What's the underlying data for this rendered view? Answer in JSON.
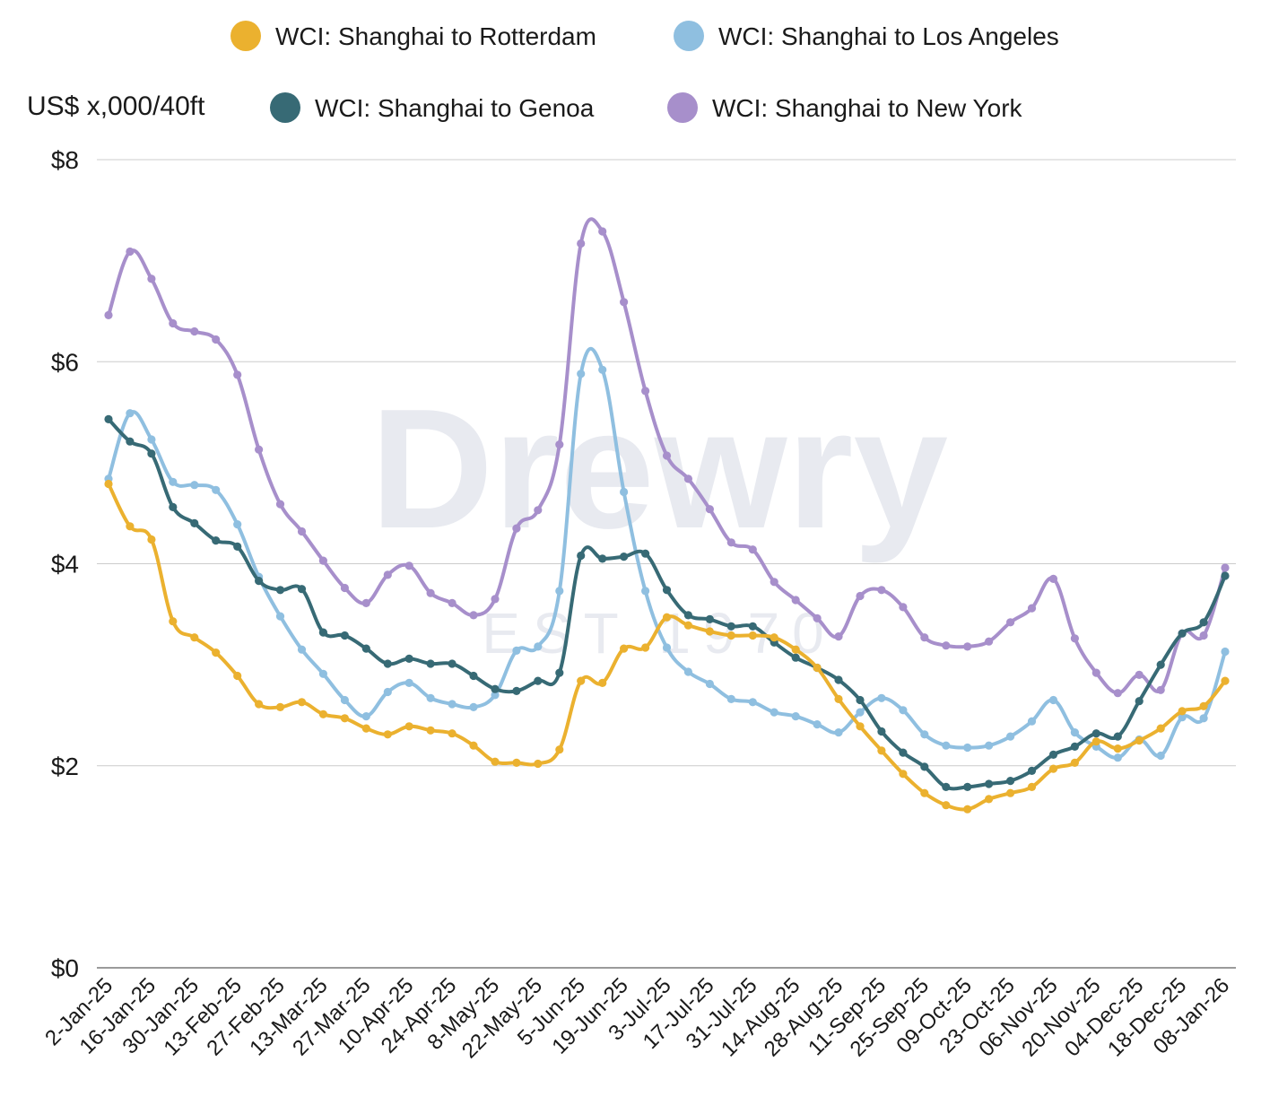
{
  "chart_data": {
    "type": "line",
    "ylabel": "US$ x,000/40ft",
    "ylim": [
      0,
      8
    ],
    "yticks": [
      {
        "value": 0,
        "label": "$0"
      },
      {
        "value": 2,
        "label": "$2"
      },
      {
        "value": 4,
        "label": "$4"
      },
      {
        "value": 6,
        "label": "$6"
      },
      {
        "value": 8,
        "label": "$8"
      }
    ],
    "grid": true,
    "legend": "top",
    "watermark": {
      "brand": "Drewry",
      "est": "EST 1970"
    },
    "x": [
      "2-Jan-25",
      "9-Jan-25",
      "16-Jan-25",
      "23-Jan-25",
      "30-Jan-25",
      "6-Feb-25",
      "13-Feb-25",
      "20-Feb-25",
      "27-Feb-25",
      "6-Mar-25",
      "13-Mar-25",
      "20-Mar-25",
      "27-Mar-25",
      "3-Apr-25",
      "10-Apr-25",
      "17-Apr-25",
      "24-Apr-25",
      "1-May-25",
      "8-May-25",
      "15-May-25",
      "22-May-25",
      "29-May-25",
      "5-Jun-25",
      "12-Jun-25",
      "19-Jun-25",
      "26-Jun-25",
      "3-Jul-25",
      "10-Jul-25",
      "17-Jul-25",
      "24-Jul-25",
      "31-Jul-25",
      "7-Aug-25",
      "14-Aug-25",
      "21-Aug-25",
      "28-Aug-25",
      "4-Sep-25",
      "11-Sep-25",
      "18-Sep-25",
      "25-Sep-25",
      "02-Oct-25",
      "09-Oct-25",
      "16-Oct-25",
      "23-Oct-25",
      "30-Oct-25",
      "06-Nov-25",
      "13-Nov-25",
      "20-Nov-25",
      "27-Nov-25",
      "04-Dec-25",
      "11-Dec-25",
      "18-Dec-25",
      "25-Dec-25",
      "08-Jan-26"
    ],
    "xtick_labels": [
      "2-Jan-25",
      "16-Jan-25",
      "30-Jan-25",
      "13-Feb-25",
      "27-Feb-25",
      "13-Mar-25",
      "27-Mar-25",
      "10-Apr-25",
      "24-Apr-25",
      "8-May-25",
      "22-May-25",
      "5-Jun-25",
      "19-Jun-25",
      "3-Jul-25",
      "17-Jul-25",
      "31-Jul-25",
      "14-Aug-25",
      "28-Aug-25",
      "11-Sep-25",
      "25-Sep-25",
      "09-Oct-25",
      "23-Oct-25",
      "06-Nov-25",
      "20-Nov-25",
      "04-Dec-25",
      "18-Dec-25",
      "08-Jan-26"
    ],
    "xtick_index": [
      0,
      2,
      4,
      6,
      8,
      10,
      12,
      14,
      16,
      18,
      20,
      22,
      24,
      26,
      28,
      30,
      32,
      34,
      36,
      38,
      40,
      42,
      44,
      46,
      48,
      50,
      52
    ],
    "series": [
      {
        "name": "WCI: Shanghai to Rotterdam",
        "color": "#EBB12F",
        "values": [
          4.79,
          4.37,
          4.24,
          3.43,
          3.27,
          3.12,
          2.89,
          2.61,
          2.58,
          2.63,
          2.51,
          2.47,
          2.37,
          2.31,
          2.39,
          2.35,
          2.32,
          2.2,
          2.04,
          2.03,
          2.02,
          2.16,
          2.84,
          2.82,
          3.16,
          3.17,
          3.47,
          3.39,
          3.33,
          3.29,
          3.29,
          3.27,
          3.15,
          2.97,
          2.66,
          2.39,
          2.15,
          1.92,
          1.73,
          1.61,
          1.57,
          1.67,
          1.73,
          1.79,
          1.97,
          2.03,
          2.24,
          2.17,
          2.25,
          2.37,
          2.54,
          2.59,
          2.84
        ]
      },
      {
        "name": "WCI: Shanghai to Los Angeles",
        "color": "#8FBFE0",
        "values": [
          4.84,
          5.49,
          5.23,
          4.81,
          4.78,
          4.73,
          4.39,
          3.87,
          3.48,
          3.15,
          2.91,
          2.65,
          2.49,
          2.73,
          2.82,
          2.67,
          2.61,
          2.58,
          2.7,
          3.14,
          3.18,
          3.73,
          5.88,
          5.92,
          4.71,
          3.73,
          3.17,
          2.93,
          2.81,
          2.66,
          2.63,
          2.53,
          2.49,
          2.41,
          2.33,
          2.53,
          2.67,
          2.55,
          2.31,
          2.2,
          2.18,
          2.2,
          2.29,
          2.44,
          2.65,
          2.33,
          2.19,
          2.08,
          2.26,
          2.1,
          2.48,
          2.47,
          3.13
        ]
      },
      {
        "name": "WCI: Shanghai to Genoa",
        "color": "#376A75",
        "values": [
          5.43,
          5.21,
          5.09,
          4.56,
          4.4,
          4.23,
          4.17,
          3.83,
          3.74,
          3.75,
          3.32,
          3.29,
          3.16,
          3.01,
          3.06,
          3.01,
          3.01,
          2.89,
          2.76,
          2.74,
          2.84,
          2.92,
          4.08,
          4.05,
          4.07,
          4.1,
          3.74,
          3.49,
          3.45,
          3.38,
          3.38,
          3.22,
          3.07,
          2.97,
          2.85,
          2.65,
          2.34,
          2.13,
          1.99,
          1.79,
          1.79,
          1.82,
          1.85,
          1.95,
          2.11,
          2.19,
          2.32,
          2.29,
          2.64,
          3.0,
          3.31,
          3.42,
          3.88
        ]
      },
      {
        "name": "WCI: Shanghai to New York",
        "color": "#A78FCB",
        "values": [
          6.46,
          7.09,
          6.82,
          6.38,
          6.3,
          6.22,
          5.87,
          5.13,
          4.59,
          4.32,
          4.03,
          3.76,
          3.61,
          3.89,
          3.98,
          3.71,
          3.61,
          3.49,
          3.65,
          4.35,
          4.53,
          5.18,
          7.17,
          7.29,
          6.59,
          5.71,
          5.07,
          4.84,
          4.54,
          4.21,
          4.14,
          3.82,
          3.64,
          3.46,
          3.28,
          3.68,
          3.74,
          3.57,
          3.27,
          3.19,
          3.18,
          3.23,
          3.42,
          3.56,
          3.85,
          3.26,
          2.92,
          2.72,
          2.9,
          2.75,
          3.31,
          3.29,
          3.96
        ]
      }
    ]
  }
}
